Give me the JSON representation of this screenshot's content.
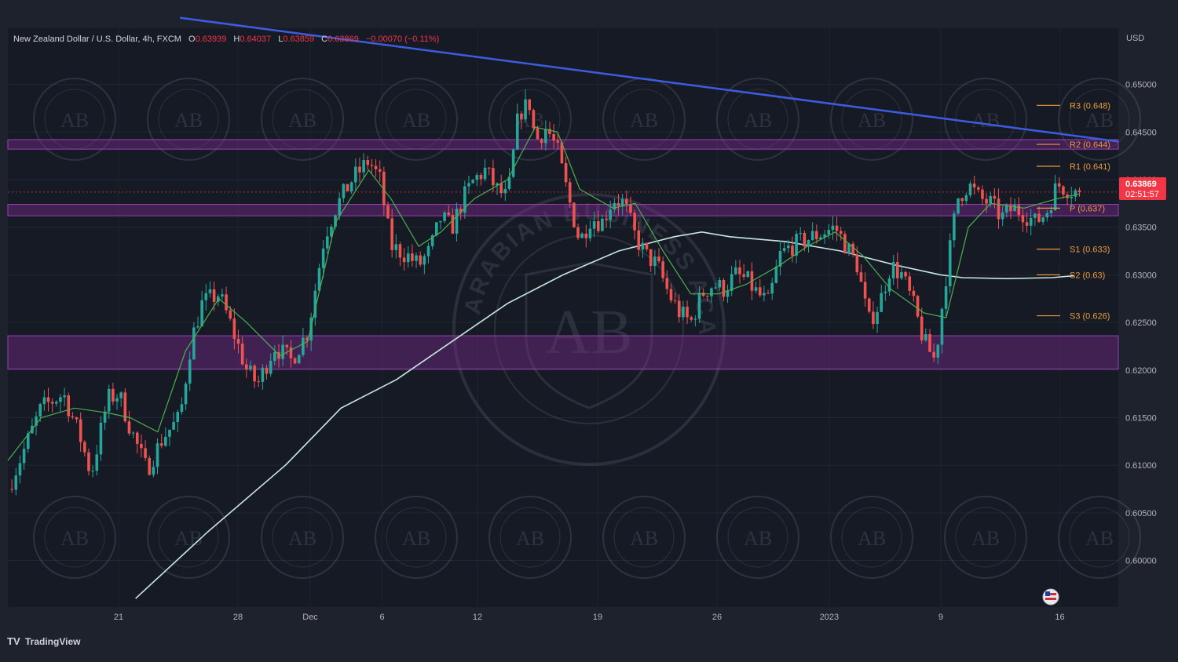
{
  "legend": {
    "symbol": "New Zealand Dollar / U.S. Dollar, 4h, FXCM",
    "o_label": "O",
    "o_value": "0.63939",
    "h_label": "H",
    "h_value": "0.64037",
    "l_label": "L",
    "l_value": "0.63859",
    "c_label": "C",
    "c_value": "0.63869",
    "change": "−0.00070 (−0.11%)"
  },
  "axis": {
    "currency": "USD"
  },
  "price_tag": {
    "price": "0.63869",
    "countdown": "02:51:57",
    "color": "#f23645"
  },
  "footer": {
    "brand": "TradingView"
  },
  "watermark": {
    "logo_text": "AB",
    "arc_text": "ARABIAN BUSINESS ACADEMY"
  },
  "colors": {
    "background": "#161a25",
    "up": "#26a69a",
    "down": "#ef5350",
    "zone": "#7b2b8f",
    "trendline": "#3d5de0",
    "ema": "#4caf50",
    "sma": "#c8e6e0",
    "pivot": "#e89a3c"
  },
  "chart_data": {
    "type": "candlestick",
    "x_ticks": [
      "21",
      "28",
      "Dec",
      "6",
      "12",
      "19",
      "26",
      "2023",
      "9",
      "16"
    ],
    "y_ticks": [
      "0.65000",
      "0.64500",
      "0.64000",
      "0.63500",
      "0.63000",
      "0.62500",
      "0.62000",
      "0.61500",
      "0.61000",
      "0.60500",
      "0.60000"
    ],
    "ylim": [
      0.5951,
      0.6559
    ],
    "pivot_levels": [
      {
        "label": "R3 (0.648)",
        "value": 0.6478
      },
      {
        "label": "R2 (0.644)",
        "value": 0.6437
      },
      {
        "label": "R1 (0.641)",
        "value": 0.6414
      },
      {
        "label": "P (0.637)",
        "value": 0.637
      },
      {
        "label": "S1 (0.633)",
        "value": 0.6327
      },
      {
        "label": "S2 (0.63)",
        "value": 0.63
      },
      {
        "label": "S3 (0.626)",
        "value": 0.6257
      }
    ],
    "zones": [
      {
        "from": 0.6432,
        "to": 0.6442
      },
      {
        "from": 0.6362,
        "to": 0.6374
      },
      {
        "from": 0.6201,
        "to": 0.6236
      }
    ],
    "trendline": {
      "from": {
        "t": 0.155,
        "price": 0.657
      },
      "to": {
        "t": 1.0,
        "price": 0.644
      }
    },
    "close_path": [
      [
        0.0,
        0.6075
      ],
      [
        0.03,
        0.616
      ],
      [
        0.05,
        0.6175
      ],
      [
        0.065,
        0.613
      ],
      [
        0.075,
        0.609
      ],
      [
        0.09,
        0.617
      ],
      [
        0.1,
        0.6175
      ],
      [
        0.11,
        0.614
      ],
      [
        0.12,
        0.611
      ],
      [
        0.125,
        0.6095
      ],
      [
        0.14,
        0.613
      ],
      [
        0.155,
        0.615
      ],
      [
        0.165,
        0.623
      ],
      [
        0.175,
        0.627
      ],
      [
        0.19,
        0.628
      ],
      [
        0.2,
        0.625
      ],
      [
        0.215,
        0.62
      ],
      [
        0.225,
        0.6185
      ],
      [
        0.24,
        0.6225
      ],
      [
        0.255,
        0.621
      ],
      [
        0.27,
        0.624
      ],
      [
        0.285,
        0.634
      ],
      [
        0.295,
        0.637
      ],
      [
        0.31,
        0.64
      ],
      [
        0.325,
        0.642
      ],
      [
        0.335,
        0.64
      ],
      [
        0.345,
        0.633
      ],
      [
        0.36,
        0.632
      ],
      [
        0.37,
        0.631
      ],
      [
        0.38,
        0.6325
      ],
      [
        0.39,
        0.636
      ],
      [
        0.4,
        0.635
      ],
      [
        0.41,
        0.638
      ],
      [
        0.42,
        0.64
      ],
      [
        0.43,
        0.641
      ],
      [
        0.44,
        0.639
      ],
      [
        0.45,
        0.638
      ],
      [
        0.46,
        0.647
      ],
      [
        0.47,
        0.648
      ],
      [
        0.475,
        0.644
      ],
      [
        0.485,
        0.6455
      ],
      [
        0.495,
        0.643
      ],
      [
        0.505,
        0.638
      ],
      [
        0.515,
        0.6335
      ],
      [
        0.525,
        0.636
      ],
      [
        0.535,
        0.6355
      ],
      [
        0.545,
        0.638
      ],
      [
        0.555,
        0.6375
      ],
      [
        0.565,
        0.634
      ],
      [
        0.575,
        0.632
      ],
      [
        0.585,
        0.631
      ],
      [
        0.595,
        0.628
      ],
      [
        0.605,
        0.626
      ],
      [
        0.615,
        0.625
      ],
      [
        0.625,
        0.628
      ],
      [
        0.635,
        0.629
      ],
      [
        0.645,
        0.6285
      ],
      [
        0.655,
        0.63
      ],
      [
        0.665,
        0.6295
      ],
      [
        0.675,
        0.628
      ],
      [
        0.685,
        0.627
      ],
      [
        0.695,
        0.632
      ],
      [
        0.705,
        0.633
      ],
      [
        0.715,
        0.6335
      ],
      [
        0.725,
        0.634
      ],
      [
        0.735,
        0.6345
      ],
      [
        0.745,
        0.635
      ],
      [
        0.755,
        0.633
      ],
      [
        0.765,
        0.631
      ],
      [
        0.775,
        0.625
      ],
      [
        0.785,
        0.627
      ],
      [
        0.795,
        0.631
      ],
      [
        0.805,
        0.63
      ],
      [
        0.815,
        0.627
      ],
      [
        0.825,
        0.623
      ],
      [
        0.835,
        0.621
      ],
      [
        0.845,
        0.63
      ],
      [
        0.855,
        0.638
      ],
      [
        0.865,
        0.6395
      ],
      [
        0.875,
        0.638
      ],
      [
        0.885,
        0.6375
      ],
      [
        0.895,
        0.636
      ],
      [
        0.905,
        0.637
      ],
      [
        0.915,
        0.6365
      ],
      [
        0.925,
        0.6355
      ],
      [
        0.935,
        0.6365
      ],
      [
        0.945,
        0.6395
      ],
      [
        0.955,
        0.639
      ],
      [
        0.965,
        0.6386
      ]
    ],
    "ema_path": [
      [
        0.0,
        0.6105
      ],
      [
        0.03,
        0.615
      ],
      [
        0.06,
        0.616
      ],
      [
        0.09,
        0.6155
      ],
      [
        0.11,
        0.615
      ],
      [
        0.135,
        0.6135
      ],
      [
        0.16,
        0.622
      ],
      [
        0.19,
        0.6275
      ],
      [
        0.215,
        0.625
      ],
      [
        0.245,
        0.6215
      ],
      [
        0.27,
        0.623
      ],
      [
        0.295,
        0.6355
      ],
      [
        0.325,
        0.641
      ],
      [
        0.345,
        0.638
      ],
      [
        0.37,
        0.633
      ],
      [
        0.39,
        0.6345
      ],
      [
        0.42,
        0.638
      ],
      [
        0.45,
        0.64
      ],
      [
        0.475,
        0.6455
      ],
      [
        0.495,
        0.645
      ],
      [
        0.515,
        0.639
      ],
      [
        0.545,
        0.637
      ],
      [
        0.565,
        0.6375
      ],
      [
        0.59,
        0.6325
      ],
      [
        0.615,
        0.628
      ],
      [
        0.64,
        0.628
      ],
      [
        0.665,
        0.629
      ],
      [
        0.695,
        0.631
      ],
      [
        0.72,
        0.633
      ],
      [
        0.745,
        0.6345
      ],
      [
        0.77,
        0.632
      ],
      [
        0.795,
        0.6285
      ],
      [
        0.825,
        0.626
      ],
      [
        0.845,
        0.6255
      ],
      [
        0.865,
        0.635
      ],
      [
        0.885,
        0.6375
      ],
      [
        0.915,
        0.637
      ],
      [
        0.945,
        0.638
      ],
      [
        0.965,
        0.6385
      ]
    ],
    "sma_path": [
      [
        0.115,
        0.596
      ],
      [
        0.18,
        0.603
      ],
      [
        0.25,
        0.61
      ],
      [
        0.3,
        0.616
      ],
      [
        0.35,
        0.619
      ],
      [
        0.4,
        0.623
      ],
      [
        0.45,
        0.627
      ],
      [
        0.5,
        0.63
      ],
      [
        0.55,
        0.6325
      ],
      [
        0.6,
        0.634
      ],
      [
        0.625,
        0.6345
      ],
      [
        0.65,
        0.634
      ],
      [
        0.7,
        0.6335
      ],
      [
        0.75,
        0.6325
      ],
      [
        0.8,
        0.631
      ],
      [
        0.84,
        0.63
      ],
      [
        0.86,
        0.6297
      ],
      [
        0.9,
        0.6296
      ],
      [
        0.94,
        0.6297
      ],
      [
        0.96,
        0.6299
      ]
    ]
  }
}
